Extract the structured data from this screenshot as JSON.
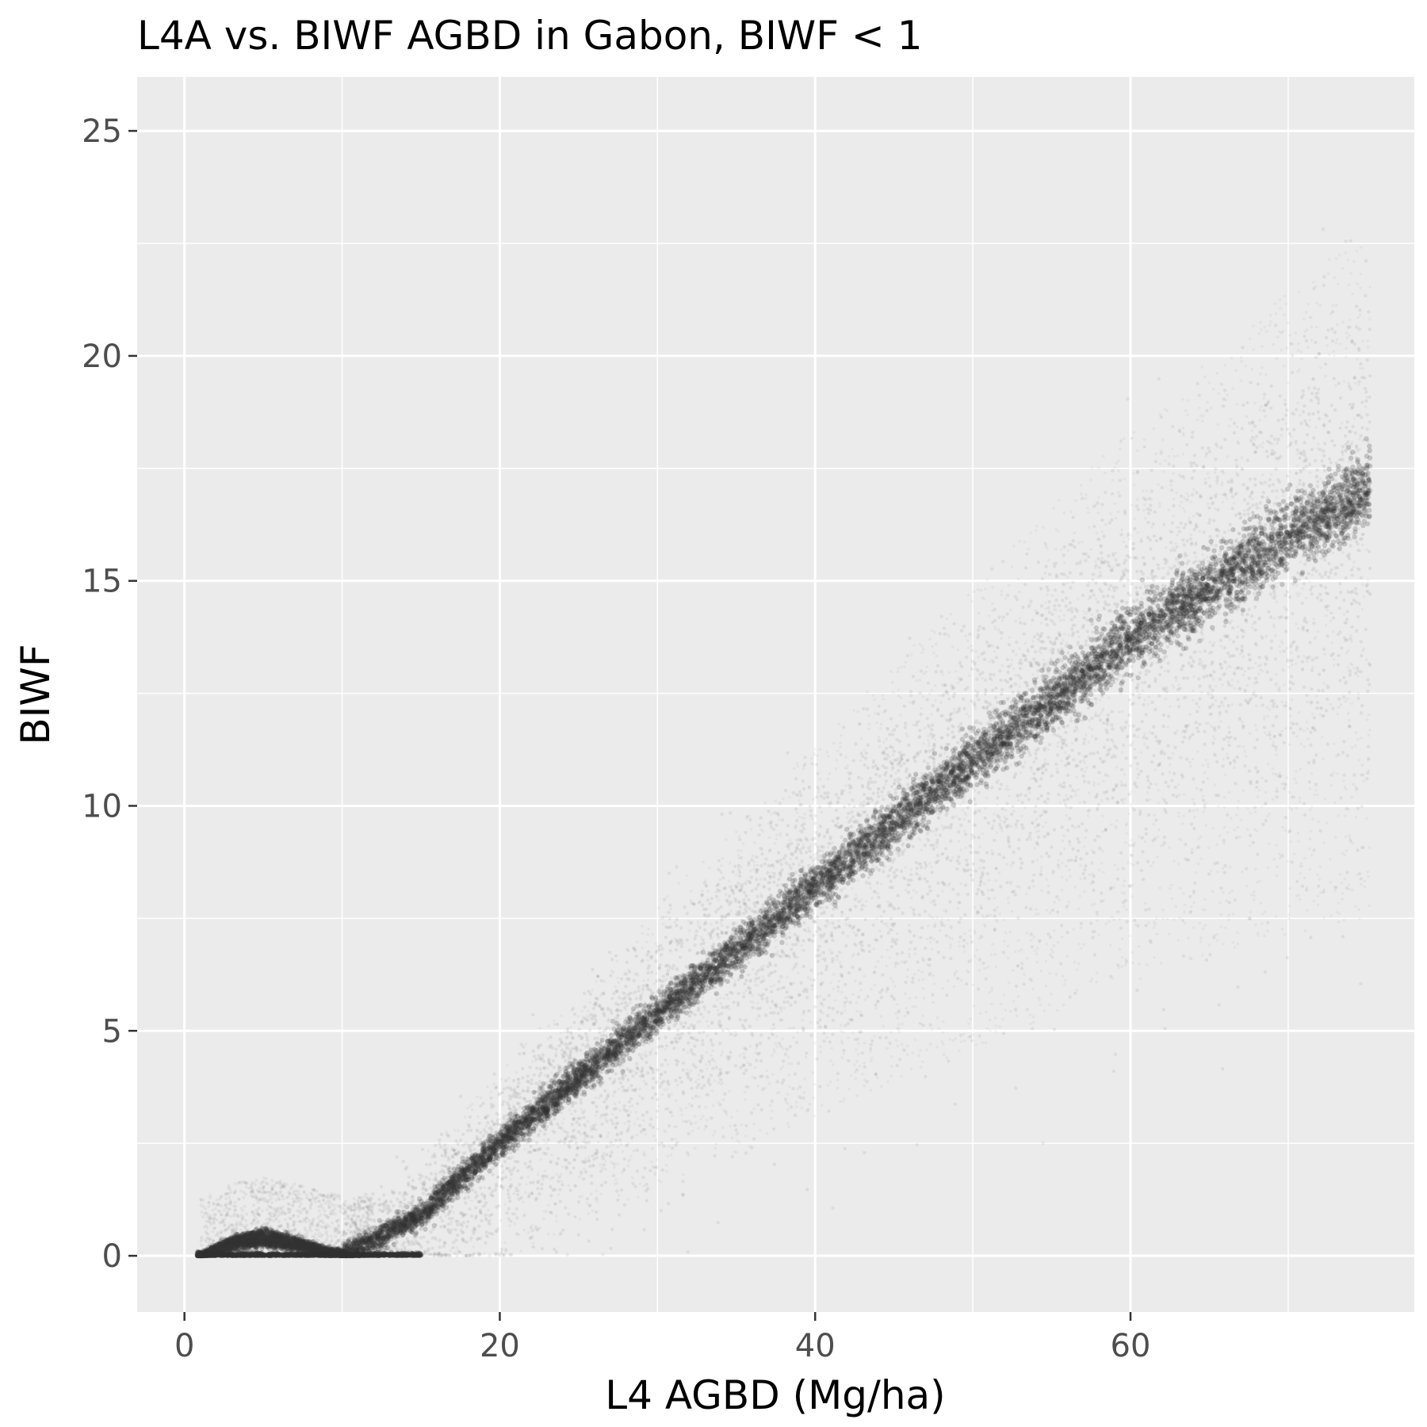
{
  "chart_data": {
    "type": "scatter",
    "title": "L4A vs. BIWF AGBD in Gabon, BIWF < 1",
    "xlabel": "L4 AGBD (Mg/ha)",
    "ylabel": "BIWF",
    "xlim": [
      -3,
      78
    ],
    "ylim": [
      -1.25,
      26.2
    ],
    "x_ticks": [
      0,
      20,
      40,
      60
    ],
    "y_ticks": [
      0,
      5,
      10,
      15,
      20,
      25
    ],
    "x_minor_ticks": [
      10,
      30,
      50,
      70
    ],
    "y_minor_ticks": [
      2.5,
      7.5,
      12.5,
      17.5,
      22.5
    ],
    "grid": true,
    "point_color": "#333333",
    "panel_background": "#ebebeb",
    "density_description_points": {
      "main_ridge": [
        [
          10,
          0.0
        ],
        [
          15,
          0.9
        ],
        [
          20,
          2.5
        ],
        [
          30,
          5.4
        ],
        [
          40,
          8.2
        ],
        [
          50,
          11.0
        ],
        [
          60,
          13.7
        ],
        [
          70,
          16.0
        ],
        [
          75,
          17.0
        ]
      ],
      "lower_arc": [
        [
          1,
          0.0
        ],
        [
          3,
          0.3
        ],
        [
          5,
          0.45
        ],
        [
          7,
          0.3
        ],
        [
          9,
          0.1
        ],
        [
          11,
          0.0
        ]
      ]
    }
  }
}
